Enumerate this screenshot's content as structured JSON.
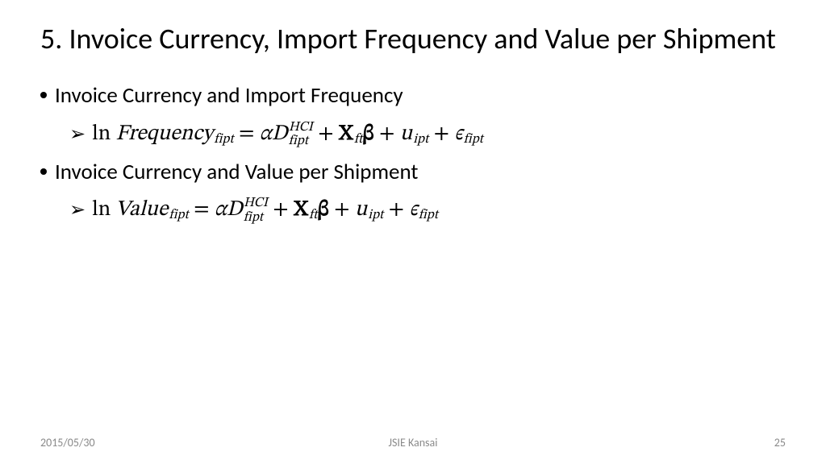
{
  "title": "5. Invoice Currency, Import Frequency and Value per Shipment",
  "bullets": {
    "b1": "Invoice Currency and Import Frequency",
    "b2": "Invoice Currency and Value per Shipment"
  },
  "eq1": {
    "ln": "ln",
    "var": "Frequency",
    "var_sub": "fipt",
    "eq": " = ",
    "alpha": "α",
    "D": "D",
    "D_sup": "HCI",
    "D_sub": "fipt",
    "plus": " + ",
    "X": "X",
    "X_sub": "ft",
    "beta": "β",
    "u": "u",
    "u_sub": "ipt",
    "eps": "ϵ",
    "eps_sub": "fipt"
  },
  "eq2": {
    "ln": "ln",
    "var": "Value",
    "var_sub": "fipt",
    "eq": " = ",
    "alpha": "α",
    "D": "D",
    "D_sup": "HCI",
    "D_sub": "fipt",
    "plus": " + ",
    "X": "X",
    "X_sub": "ft",
    "beta": "β",
    "u": "u",
    "u_sub": "ipt",
    "eps": "ϵ",
    "eps_sub": "fipt"
  },
  "footer": {
    "date": "2015/05/30",
    "center": "JSIE Kansai",
    "page": "25"
  },
  "style": {
    "background": "#ffffff",
    "text_color": "#000000",
    "footer_color": "#8a8a8a",
    "title_fontsize": 36,
    "body_fontsize": 27
  }
}
